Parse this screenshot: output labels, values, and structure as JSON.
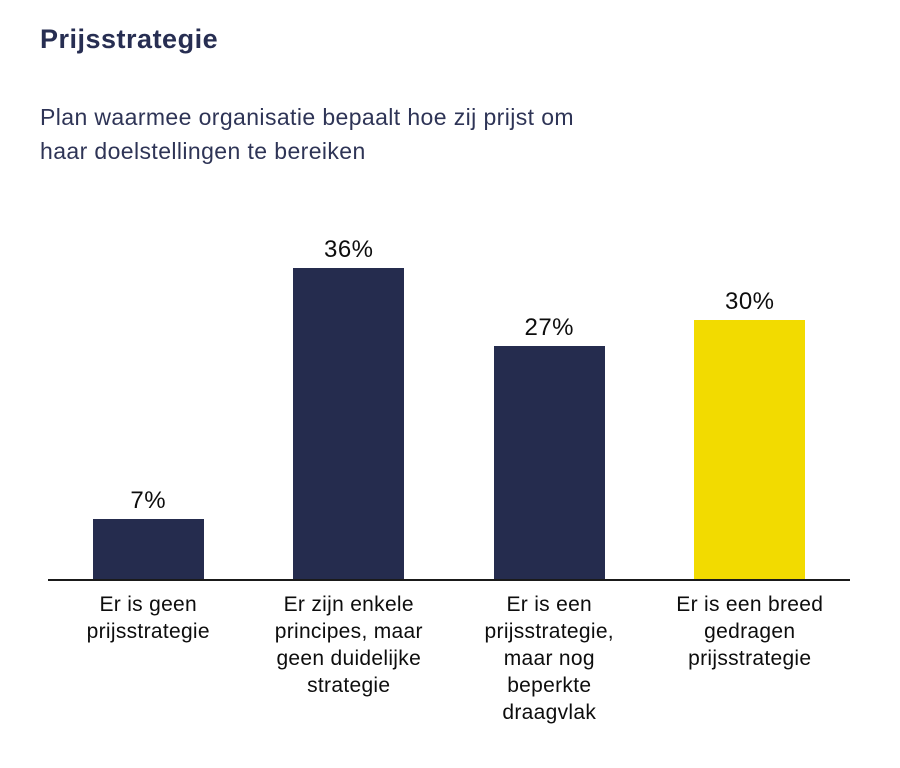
{
  "header": {
    "title": "Prijsstrategie",
    "subtitle": "Plan waarmee organisatie bepaalt hoe zij prijst om\nhaar doelstellingen te bereiken"
  },
  "colors": {
    "navy": "#252C4E",
    "yellow": "#F2DB00",
    "title_text": "#272E52",
    "subtitle_text": "#2E3456",
    "axis_line": "#1A1A1A",
    "label_text": "#0D0D0D"
  },
  "chart_data": {
    "type": "bar",
    "title": "Prijsstrategie",
    "subtitle": "Plan waarmee organisatie bepaalt hoe zij prijst om haar doelstellingen te bereiken",
    "categories": [
      "Er is geen prijsstrategie",
      "Er zijn enkele principes, maar geen duidelijke strategie",
      "Er is een prijsstrategie, maar nog beperkte draagvlak",
      "Er is een breed gedragen prijsstrategie"
    ],
    "category_labels_multiline": [
      "Er is geen\nprijsstrategie",
      "Er zijn enkele\nprincipes, maar\ngeen duidelijke\nstrategie",
      "Er is een\nprijsstrategie,\nmaar nog\nbeperkte\ndraagvlak",
      "Er is een breed\ngedragen\nprijsstrategie"
    ],
    "values": [
      7,
      36,
      27,
      30
    ],
    "value_labels": [
      "7%",
      "36%",
      "27%",
      "30%"
    ],
    "bar_colors": [
      "#252C4E",
      "#252C4E",
      "#252C4E",
      "#F2DB00"
    ],
    "unit": "%",
    "ylim": [
      0,
      40
    ],
    "grid": false,
    "legend": "none",
    "xlabel": "",
    "ylabel": "",
    "baseline_axis": true
  }
}
